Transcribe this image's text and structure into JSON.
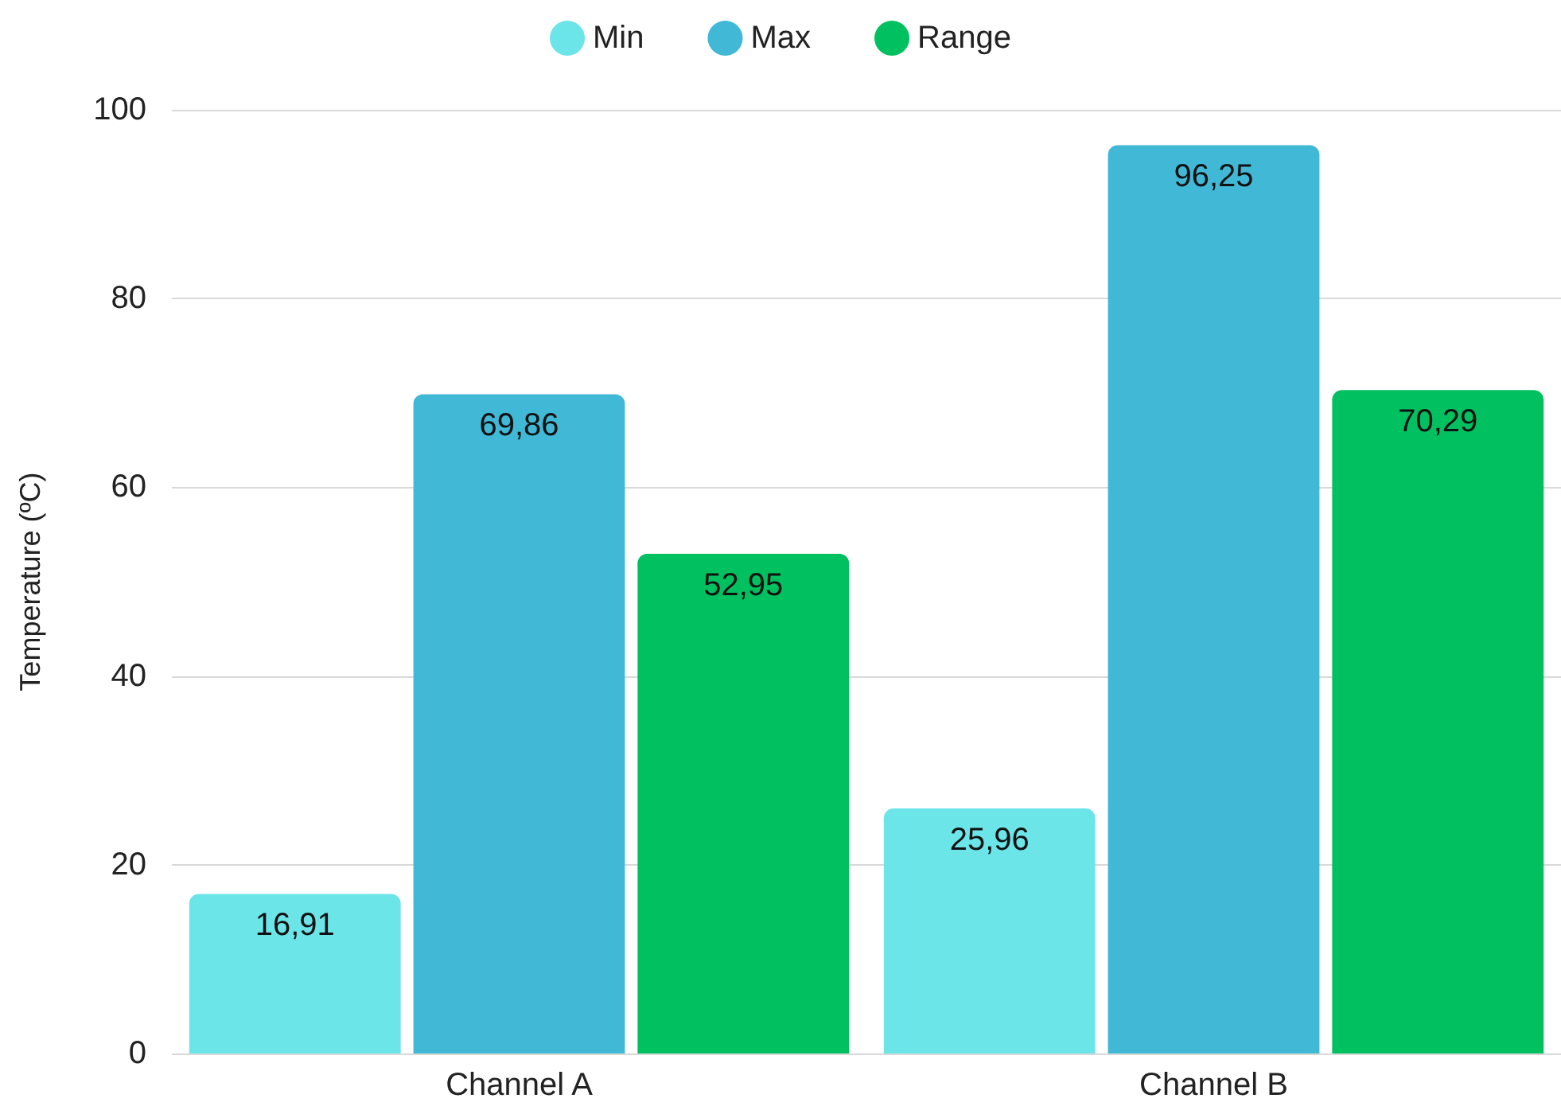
{
  "chart_data": {
    "type": "bar",
    "ylabel": "Temperature (ºC)",
    "categories": [
      "Channel A",
      "Channel B"
    ],
    "series": [
      {
        "name": "Min",
        "color": "#6ce5e8",
        "values": [
          16.91,
          25.96
        ],
        "value_labels": [
          "16,91",
          "25,96"
        ]
      },
      {
        "name": "Max",
        "color": "#41b8d5",
        "values": [
          69.86,
          96.25
        ],
        "value_labels": [
          "69,86",
          "96,25"
        ]
      },
      {
        "name": "Range",
        "color": "#00c05f",
        "values": [
          52.95,
          70.29
        ],
        "value_labels": [
          "52,95",
          "70,29"
        ]
      }
    ],
    "ylim": [
      0,
      100
    ],
    "yticks": [
      0,
      20,
      40,
      60,
      80,
      100
    ],
    "grid": "y",
    "legend": "top"
  }
}
